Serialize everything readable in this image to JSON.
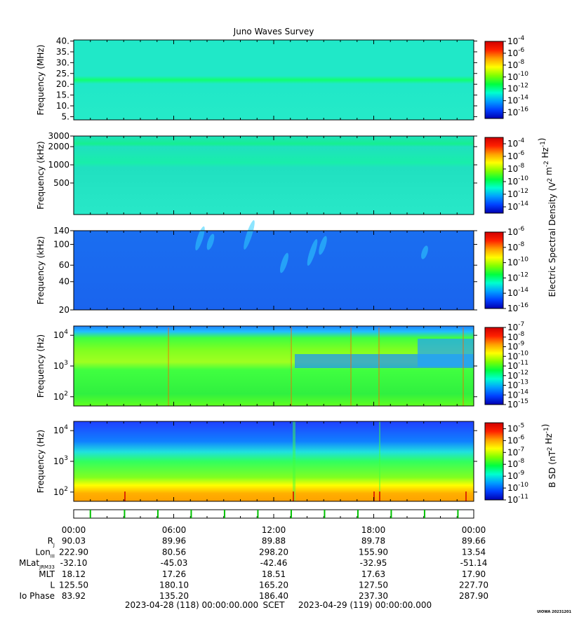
{
  "title": "Juno Waves Survey",
  "watermark": "UIOWA 20231201",
  "chart_data": {
    "type": "heatmap",
    "title": "Juno Waves Survey",
    "panels": [
      {
        "ylabel": "Frequency (MHz)",
        "yscale": "linear",
        "ylim": [
          3.5,
          40.5
        ],
        "yticks": [
          "40.",
          "35.",
          "30.",
          "25.",
          "20.",
          "15.",
          "10.",
          "5."
        ],
        "cbar_ticks": [
          "-4",
          "-6",
          "-8",
          "-10",
          "-12",
          "-14",
          "-16"
        ],
        "cbar_range_exp": [
          -17,
          -4
        ]
      },
      {
        "ylabel": "Frequency (kHz)",
        "yscale": "log",
        "ylim": [
          150,
          3000
        ],
        "yticks": [
          "3000",
          "2000",
          "1000",
          "500"
        ],
        "cbar_ticks": [
          "-4",
          "-6",
          "-8",
          "-10",
          "-12",
          "-14"
        ],
        "cbar_range_exp": [
          -15,
          -3
        ]
      },
      {
        "ylabel": "Frequency (kHz)",
        "yscale": "log",
        "ylim": [
          20,
          140
        ],
        "yticks": [
          "140",
          "100",
          "60",
          "40",
          "20"
        ],
        "cbar_ticks": [
          "-6",
          "-8",
          "-10",
          "-12",
          "-14",
          "-16"
        ],
        "cbar_range_exp": [
          -16,
          -6
        ]
      },
      {
        "ylabel": "Frequency (Hz)",
        "yscale": "log",
        "ylim": [
          50,
          20000
        ],
        "yticks": [
          "4",
          "3",
          "2"
        ],
        "cbar_ticks": [
          "-7",
          "-8",
          "-9",
          "-10",
          "-11",
          "-12",
          "-13",
          "-14",
          "-15"
        ],
        "cbar_range_exp": [
          -15,
          -7
        ]
      },
      {
        "ylabel": "Frequency (Hz)",
        "yscale": "log",
        "ylim": [
          50,
          20000
        ],
        "yticks": [
          "4",
          "3",
          "2"
        ],
        "cbar_ticks": [
          "-5",
          "-6",
          "-7",
          "-8",
          "-9",
          "-10",
          "-11"
        ],
        "cbar_range_exp": [
          -11,
          -4.5
        ]
      }
    ],
    "cbar_labels": {
      "electric": "Electric Spectral Density (V",
      "electric_mid": " m",
      "electric_end": " Hz",
      "magnetic": "B SD (nT",
      "magnetic_end": " Hz"
    },
    "cbar_colors": [
      "#0000b0",
      "#0040ff",
      "#00a0ff",
      "#00ffd0",
      "#00ff40",
      "#80ff00",
      "#ffff00",
      "#ffa000",
      "#ff2000",
      "#d00000"
    ],
    "time_ticks": [
      "00:00",
      "06:00",
      "12:00",
      "18:00",
      "00:00"
    ],
    "time_range_hours": [
      0,
      24
    ],
    "ephemeris": [
      {
        "label": "R",
        "sub": "J",
        "values": [
          "90.03",
          "89.96",
          "89.88",
          "89.78",
          "89.66"
        ]
      },
      {
        "label": "Lon",
        "sub": "III",
        "values": [
          "222.90",
          "80.56",
          "298.20",
          "155.90",
          "13.54"
        ]
      },
      {
        "label": "MLat",
        "sub": "JRM33",
        "values": [
          "-32.10",
          "-45.03",
          "-42.46",
          "-32.95",
          "-51.14"
        ]
      },
      {
        "label": "MLT",
        "sub": "",
        "values": [
          "18.12",
          "17.26",
          "18.51",
          "17.63",
          "17.90"
        ]
      },
      {
        "label": "L",
        "sub": "",
        "values": [
          "125.50",
          "180.10",
          "165.20",
          "127.50",
          "227.70"
        ]
      },
      {
        "label": "Io Phase",
        "sub": "",
        "values": [
          "83.92",
          "135.20",
          "186.40",
          "237.30",
          "287.90"
        ]
      }
    ],
    "start_label": "2023-04-28 (118) 00:00:00.000",
    "scet_label": "SCET",
    "end_label": "2023-04-29 (119) 00:00:00.000",
    "green_markers_hours": [
      1.0,
      3.05,
      5.05,
      7.05,
      9.05,
      11.05,
      13.05,
      15.05,
      17.05,
      19.05,
      21.05,
      23.05
    ]
  }
}
